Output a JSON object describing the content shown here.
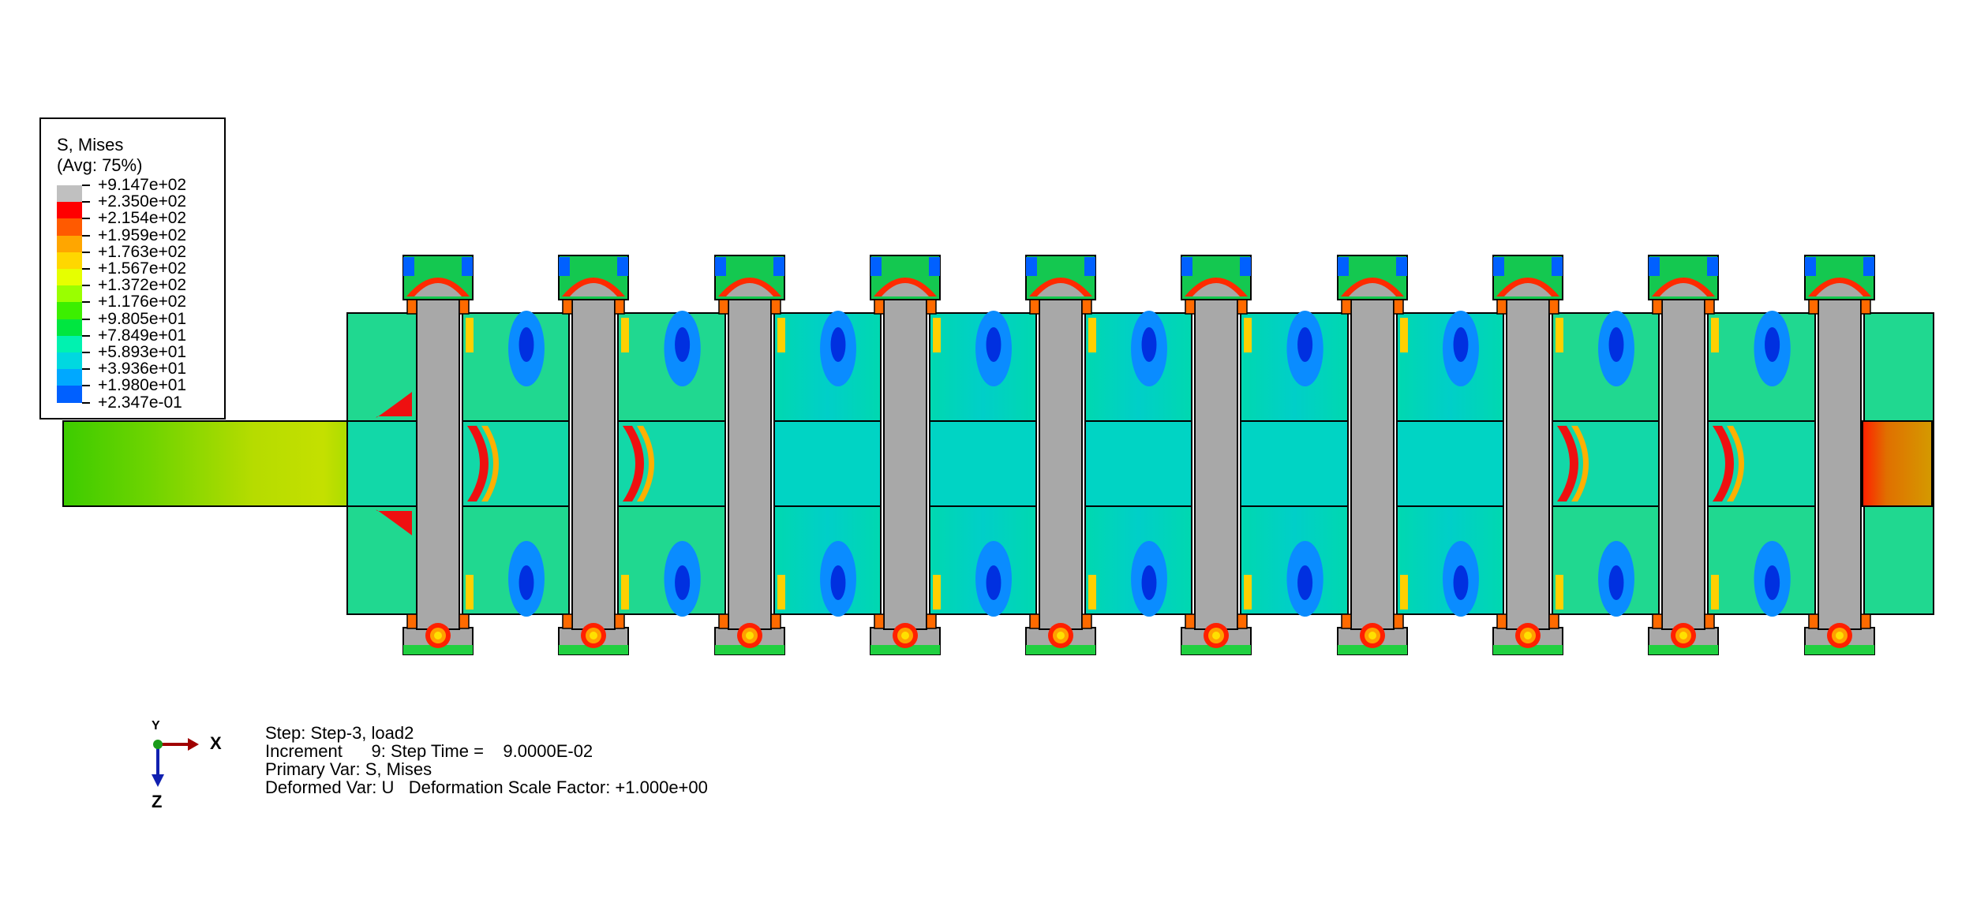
{
  "legend": {
    "title": "S, Mises",
    "subtitle": "(Avg: 75%)",
    "entries": [
      {
        "label": "+9.147e+02",
        "color": "#c0c0c0"
      },
      {
        "label": "+2.350e+02",
        "color": "#ff0000"
      },
      {
        "label": "+2.154e+02",
        "color": "#ff5a00"
      },
      {
        "label": "+1.959e+02",
        "color": "#ffa600"
      },
      {
        "label": "+1.763e+02",
        "color": "#ffd700"
      },
      {
        "label": "+1.567e+02",
        "color": "#e6ff00"
      },
      {
        "label": "+1.372e+02",
        "color": "#9aff00"
      },
      {
        "label": "+1.176e+02",
        "color": "#3cef00"
      },
      {
        "label": "+9.805e+01",
        "color": "#00e640"
      },
      {
        "label": "+7.849e+01",
        "color": "#00f2b0"
      },
      {
        "label": "+5.893e+01",
        "color": "#00d8e0"
      },
      {
        "label": "+3.936e+01",
        "color": "#00a8ff"
      },
      {
        "label": "+1.980e+01",
        "color": "#0060ff"
      },
      {
        "label": "+2.347e-01",
        "color": "#0000ff"
      }
    ]
  },
  "info": {
    "step": "Step: Step-3, load2",
    "increment": "Increment      9: Step Time =    9.0000E-02",
    "primary_var": "Primary Var: S, Mises",
    "deformed_var": "Deformed Var: U   Deformation Scale Factor: +1.000e+00"
  },
  "triad": {
    "x_label": "X",
    "y_label": "Y",
    "z_label": "Z"
  },
  "colors": {
    "rod": "#52d400",
    "rod_mid": "#c8e000",
    "block": "#00d4c0",
    "bolt": "#a8a8a8",
    "low_stress": "#0a8cff",
    "high_stress": "#ee1010",
    "end_cap": "#d89a00"
  }
}
